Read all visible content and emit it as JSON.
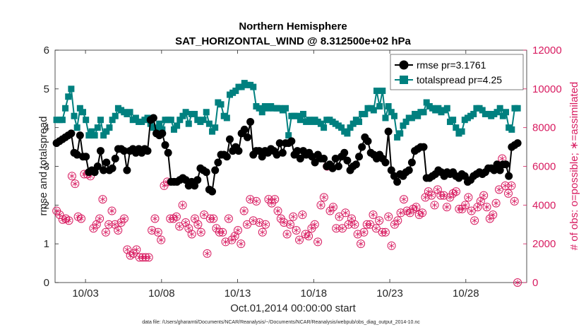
{
  "chart_data": {
    "type": "line",
    "title": "Northern Hemisphere",
    "subtitle": "SAT_HORIZONTAL_WIND @ 8.312500e+02 hPa",
    "xlabel": "Oct.01,2014 00:00:00 start",
    "ylabel": "rmse and totalspread",
    "ylabel_right": "# of obs: o=possible; ∗=assimilated",
    "footnote": "data file: /Users/gharamti/Documents/NCAR/Reanalysis/~/Documents/NCAR/Reanalysis/webpub/obs_diag_output_2014-10.nc",
    "x_tick_labels": [
      "10/03",
      "10/08",
      "10/13",
      "10/18",
      "10/23",
      "10/28"
    ],
    "x_tick_days": [
      3,
      8,
      13,
      18,
      23,
      28
    ],
    "xlim_days": [
      1.0,
      32.0
    ],
    "ylim": [
      0,
      6
    ],
    "y_ticks": [
      0,
      1,
      2,
      3,
      4,
      5,
      6
    ],
    "y_tick_labels": [
      "0",
      "1",
      "2",
      "3",
      "4",
      "5",
      "6"
    ],
    "ylim_right": [
      0,
      12000
    ],
    "y_ticks_right": [
      0,
      2000,
      4000,
      6000,
      8000,
      10000,
      12000
    ],
    "y_tick_labels_right": [
      "0",
      "2000",
      "4000",
      "6000",
      "8000",
      "10000",
      "12000"
    ],
    "legend_position": "top-right",
    "colors": {
      "rmse": "#000000",
      "totalspread": "#00807f",
      "obs": "#d81b60",
      "axis": "#262626"
    },
    "series": [
      {
        "name": "rmse pr=3.1761",
        "marker": "circle",
        "values": [
          3.6,
          3.65,
          3.7,
          3.75,
          3.8,
          3.85,
          3.35,
          3.3,
          3.8,
          3.25,
          3.25,
          2.85,
          2.9,
          2.85,
          3.0,
          3.4,
          2.9,
          3.1,
          2.9,
          2.95,
          3.2,
          3.45,
          3.45,
          3.4,
          2.9,
          3.4,
          3.45,
          3.35,
          3.45,
          3.35,
          3.45,
          3.4,
          4.2,
          4.25,
          3.85,
          3.8,
          3.85,
          3.55,
          3.35,
          2.6,
          2.6,
          2.6,
          2.65,
          2.7,
          2.65,
          2.5,
          2.6,
          2.5,
          2.65,
          2.95,
          2.9,
          2.85,
          2.4,
          2.35,
          2.9,
          3.1,
          3.3,
          3.3,
          3.25,
          3.7,
          3.4,
          3.5,
          3.4,
          3.85,
          3.95,
          3.75,
          4.15,
          3.3,
          3.4,
          3.4,
          3.25,
          3.4,
          3.35,
          3.45,
          3.4,
          3.3,
          3.6,
          3.35,
          3.6,
          3.6,
          3.65,
          3.3,
          3.4,
          3.2,
          3.4,
          3.3,
          3.35,
          3.25,
          3.1,
          3.3,
          3.2,
          3.2,
          3.0,
          3.05,
          2.95,
          3.2,
          3.0,
          3.25,
          3.35,
          3.15,
          2.9,
          3.0,
          3.05,
          3.25,
          3.5,
          3.75,
          3.65,
          3.35,
          3.3,
          3.2,
          3.3,
          3.2,
          3.1,
          3.9,
          2.9,
          2.75,
          2.6,
          2.8,
          2.75,
          2.85,
          2.9,
          3.1,
          3.4,
          3.45,
          3.5,
          3.5,
          2.7,
          2.7,
          2.75,
          2.8,
          2.9,
          2.85,
          2.75,
          2.85,
          2.8,
          2.85,
          2.75,
          2.7,
          2.8,
          2.75,
          2.6,
          2.65,
          2.75,
          2.8,
          2.85,
          2.8,
          2.85,
          2.95,
          2.95,
          2.9,
          3.05,
          2.9,
          3.05,
          3.05,
          2.75,
          3.5,
          3.55,
          3.6
        ]
      },
      {
        "name": "totalspread pr=4.25",
        "marker": "square",
        "values": [
          4.2,
          4.2,
          4.2,
          4.5,
          4.8,
          5.0,
          4.3,
          4.0,
          4.5,
          4.4,
          4.2,
          3.8,
          3.9,
          3.8,
          4.0,
          4.2,
          3.8,
          3.9,
          4.0,
          4.2,
          4.3,
          4.5,
          4.45,
          4.4,
          4.35,
          4.4,
          4.2,
          4.25,
          4.15,
          4.15,
          4.2,
          4.25,
          4.1,
          4.0,
          3.95,
          4.1,
          3.95,
          4.2,
          4.2,
          4.2,
          3.95,
          4.05,
          4.2,
          4.3,
          4.4,
          4.1,
          4.35,
          4.35,
          4.2,
          4.15,
          4.2,
          4.4,
          4.1,
          3.9,
          4.0,
          4.65,
          4.6,
          4.3,
          4.25,
          4.85,
          4.9,
          4.95,
          5.05,
          5.05,
          5.15,
          5.1,
          5.1,
          5.05,
          4.55,
          4.5,
          4.4,
          4.55,
          4.5,
          4.55,
          4.5,
          4.5,
          4.5,
          4.45,
          4.5,
          3.8,
          4.3,
          4.3,
          4.3,
          4.2,
          4.35,
          4.15,
          4.2,
          4.15,
          4.2,
          4.15,
          4.1,
          4.0,
          4.2,
          4.2,
          4.15,
          4.1,
          4.05,
          4.0,
          3.9,
          3.85,
          4.0,
          4.1,
          4.2,
          4.15,
          4.35,
          4.35,
          4.5,
          4.5,
          4.45,
          4.95,
          4.55,
          4.95,
          4.25,
          4.55,
          4.4,
          4.3,
          3.75,
          3.85,
          4.05,
          4.15,
          4.25,
          4.25,
          4.35,
          4.3,
          4.4,
          4.4,
          4.65,
          4.55,
          4.5,
          4.45,
          4.5,
          4.4,
          4.45,
          4.5,
          4.15,
          4.2,
          4.0,
          3.85,
          3.9,
          4.2,
          4.25,
          4.3,
          4.35,
          4.5,
          4.5,
          4.45,
          4.35,
          4.35,
          4.3,
          4.35,
          4.4,
          4.5,
          4.3,
          4.4,
          4.0,
          3.95,
          4.5,
          4.5
        ]
      },
      {
        "name": "obs possible (o)",
        "axis": "right",
        "marker": "circle-open",
        "values": [
          3700,
          3500,
          3250,
          3300,
          3200,
          5500,
          5100,
          3400,
          3300,
          5600,
          5600,
          5500,
          2800,
          3000,
          3300,
          4300,
          2600,
          3000,
          3700,
          3000,
          2700,
          3100,
          3300,
          1700,
          1400,
          1500,
          1700,
          1300,
          1300,
          1300,
          1300,
          2700,
          3300,
          2600,
          2200,
          5000,
          5200,
          3300,
          3300,
          3400,
          2900,
          4000,
          3100,
          2800,
          2500,
          3300,
          3000,
          2600,
          3500,
          1500,
          3300,
          3300,
          2800,
          2600,
          2600,
          2100,
          3300,
          2200,
          2400,
          2700,
          2000,
          3700,
          3000,
          4300,
          3200,
          4200,
          3100,
          2600,
          3000,
          4300,
          4100,
          4300,
          3700,
          3300,
          3100,
          2500,
          3000,
          3400,
          2700,
          2200,
          3500,
          2500,
          2400,
          2800,
          3000,
          2100,
          4000,
          4400,
          6000,
          3700,
          3900,
          2800,
          3400,
          2800,
          3600,
          3000,
          3300,
          3000,
          2500,
          2000,
          2600,
          3000,
          3000,
          3500,
          2800,
          3200,
          2600,
          2600,
          3400,
          1900,
          3000,
          3200,
          3600,
          4300,
          3700,
          3600,
          3800,
          3900,
          3500,
          3600,
          4400,
          4700,
          4500,
          4000,
          4800,
          4500,
          4500,
          3900,
          4400,
          4600,
          4700,
          3800,
          3800,
          4000,
          4400,
          3700,
          3200,
          3900,
          4200,
          4500,
          3900,
          3300,
          3500,
          4100,
          4800,
          6400,
          5000,
          4600,
          5000,
          4200,
          0
        ]
      },
      {
        "name": "obs assimilated (∗)",
        "axis": "right",
        "marker": "star",
        "values": [
          3700,
          3500,
          3250,
          3300,
          3200,
          5500,
          5100,
          3400,
          3300,
          5600,
          5600,
          5500,
          2800,
          3000,
          3300,
          4300,
          2600,
          3000,
          3700,
          3000,
          2700,
          3100,
          3300,
          1700,
          1400,
          1500,
          1700,
          1300,
          1300,
          1300,
          1300,
          2700,
          3300,
          2600,
          2200,
          5000,
          5200,
          3300,
          3300,
          3400,
          2900,
          4000,
          3100,
          2800,
          2500,
          3300,
          3000,
          2600,
          3500,
          1500,
          3300,
          3300,
          2800,
          2600,
          2600,
          2100,
          3300,
          2200,
          2400,
          2700,
          2000,
          3700,
          3000,
          4300,
          3200,
          4200,
          3100,
          2600,
          3000,
          4300,
          4100,
          4300,
          3700,
          3300,
          3100,
          2500,
          3000,
          3400,
          2700,
          2200,
          3500,
          2500,
          2400,
          2800,
          3000,
          2100,
          4000,
          4400,
          6000,
          3700,
          3900,
          2800,
          3400,
          2800,
          3600,
          3000,
          3300,
          3000,
          2500,
          2000,
          2600,
          3000,
          3000,
          3500,
          2800,
          3200,
          2600,
          2600,
          3400,
          1900,
          3000,
          3200,
          3600,
          4300,
          3700,
          3600,
          3800,
          3900,
          3500,
          3600,
          4400,
          4700,
          4500,
          4000,
          4800,
          4500,
          4500,
          3900,
          4400,
          4600,
          4700,
          3800,
          3800,
          4000,
          4400,
          3700,
          3200,
          3900,
          4200,
          4500,
          3900,
          3300,
          3500,
          4100,
          4800,
          6400,
          5000,
          4600,
          5000,
          4200,
          0
        ]
      }
    ]
  }
}
